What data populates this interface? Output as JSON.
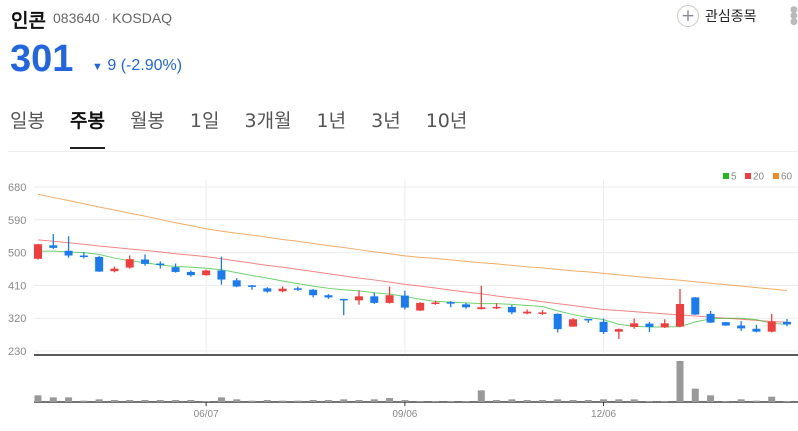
{
  "stock": {
    "name": "인콘",
    "code": "083640",
    "separator": "·",
    "market": "KOSDAQ",
    "price": "301",
    "change_arrow": "▼",
    "change": "9",
    "change_pct": "(-2.90%)"
  },
  "actions": {
    "favorite_label": "관심종목",
    "favorite_icon": "plus-icon",
    "more_icon": "more-vertical-icon"
  },
  "tabs": [
    {
      "label": "일봉"
    },
    {
      "label": "주봉",
      "active": true
    },
    {
      "label": "월봉"
    },
    {
      "label": "1일"
    },
    {
      "label": "3개월"
    },
    {
      "label": "1년"
    },
    {
      "label": "3년"
    },
    {
      "label": "10년"
    }
  ],
  "colors": {
    "up": "#f03e3e",
    "down": "#1a7bf0",
    "ma5": "#2fbf2f",
    "ma20": "#f05050",
    "ma60": "#f08a24",
    "volume": "#999999",
    "price": "#2166e0"
  },
  "chart_data": {
    "type": "candlestick",
    "legend": [
      {
        "name": "5",
        "color": "#1fb81f"
      },
      {
        "name": "20",
        "color": "#f03e3e"
      },
      {
        "name": "60",
        "color": "#f08a24"
      }
    ],
    "legend_position": "top-right",
    "y_ticks": [
      "680",
      "590",
      "500",
      "410",
      "320",
      "230"
    ],
    "ylim": [
      230,
      680
    ],
    "x_ticks": [
      {
        "index": 11,
        "label": "06/07"
      },
      {
        "index": 24,
        "label": "09/06"
      },
      {
        "index": 37,
        "label": "12/06"
      }
    ],
    "ohlc": [
      [
        483,
        524,
        481,
        523
      ],
      [
        520,
        551,
        510,
        513
      ],
      [
        505,
        545,
        486,
        492
      ],
      [
        492,
        501,
        484,
        490
      ],
      [
        488,
        491,
        447,
        448
      ],
      [
        449,
        462,
        446,
        456
      ],
      [
        459,
        492,
        456,
        482
      ],
      [
        481,
        495,
        464,
        469
      ],
      [
        470,
        476,
        456,
        466
      ],
      [
        460,
        470,
        445,
        447
      ],
      [
        447,
        451,
        434,
        438
      ],
      [
        438,
        453,
        437,
        451
      ],
      [
        451,
        489,
        412,
        426
      ],
      [
        424,
        430,
        405,
        407
      ],
      [
        410,
        411,
        398,
        408
      ],
      [
        402,
        405,
        390,
        393
      ],
      [
        394,
        407,
        391,
        401
      ],
      [
        402,
        407,
        395,
        400
      ],
      [
        398,
        400,
        377,
        383
      ],
      [
        383,
        386,
        373,
        377
      ],
      [
        373,
        373,
        328,
        369
      ],
      [
        369,
        396,
        357,
        380
      ],
      [
        380,
        390,
        359,
        362
      ],
      [
        362,
        407,
        360,
        383
      ],
      [
        382,
        395,
        344,
        349
      ],
      [
        341,
        364,
        340,
        362
      ],
      [
        359,
        368,
        357,
        363
      ],
      [
        364,
        367,
        350,
        361
      ],
      [
        358,
        362,
        346,
        350
      ],
      [
        345,
        409,
        344,
        350
      ],
      [
        348,
        361,
        345,
        351
      ],
      [
        351,
        356,
        331,
        336
      ],
      [
        333,
        344,
        331,
        338
      ],
      [
        333,
        342,
        329,
        336
      ],
      [
        332,
        333,
        281,
        290
      ],
      [
        297,
        320,
        296,
        317
      ],
      [
        318,
        318,
        307,
        316
      ],
      [
        310,
        319,
        277,
        282
      ],
      [
        283,
        292,
        263,
        290
      ],
      [
        296,
        319,
        291,
        306
      ],
      [
        305,
        310,
        282,
        296
      ],
      [
        295,
        317,
        293,
        306
      ],
      [
        297,
        400,
        295,
        359
      ],
      [
        377,
        378,
        329,
        330
      ],
      [
        332,
        340,
        307,
        308
      ],
      [
        309,
        310,
        299,
        300
      ],
      [
        300,
        312,
        285,
        292
      ],
      [
        291,
        302,
        281,
        283
      ],
      [
        283,
        332,
        281,
        311
      ],
      [
        310,
        318,
        298,
        303
      ]
    ],
    "ma5": [
      504,
      504,
      502,
      500,
      495,
      485,
      478,
      472,
      466,
      462,
      460,
      457,
      453,
      445,
      437,
      430,
      422,
      415,
      408,
      402,
      398,
      395,
      390,
      386,
      380,
      372,
      366,
      364,
      362,
      360,
      360,
      358,
      355,
      352,
      340,
      330,
      322,
      316,
      303,
      298,
      296,
      296,
      297,
      310,
      318,
      320,
      320,
      316,
      306,
      303
    ],
    "ma20": [
      535,
      531,
      527,
      523,
      518,
      514,
      510,
      506,
      502,
      497,
      493,
      489,
      483,
      477,
      471,
      465,
      460,
      454,
      448,
      442,
      436,
      430,
      425,
      419,
      413,
      408,
      403,
      397,
      392,
      387,
      381,
      376,
      371,
      365,
      360,
      355,
      349,
      344,
      341,
      338,
      335,
      332,
      329,
      326,
      323,
      320,
      317,
      314,
      311,
      309
    ],
    "ma60": [
      660,
      651,
      643,
      634,
      625,
      617,
      608,
      600,
      591,
      582,
      574,
      565,
      559,
      553,
      548,
      542,
      536,
      531,
      525,
      519,
      514,
      508,
      502,
      497,
      491,
      487,
      484,
      480,
      476,
      472,
      469,
      465,
      461,
      458,
      454,
      450,
      447,
      443,
      439,
      435,
      431,
      428,
      424,
      420,
      416,
      412,
      408,
      404,
      400,
      396
    ],
    "volume": [
      20,
      14,
      14,
      4,
      8,
      6,
      6,
      6,
      6,
      6,
      6,
      3,
      14,
      8,
      4,
      6,
      4,
      4,
      6,
      6,
      8,
      6,
      8,
      12,
      6,
      3,
      3,
      3,
      3,
      35,
      6,
      8,
      6,
      6,
      8,
      6,
      6,
      8,
      8,
      8,
      3,
      3,
      123,
      40,
      20,
      3,
      8,
      4,
      16,
      3
    ]
  }
}
